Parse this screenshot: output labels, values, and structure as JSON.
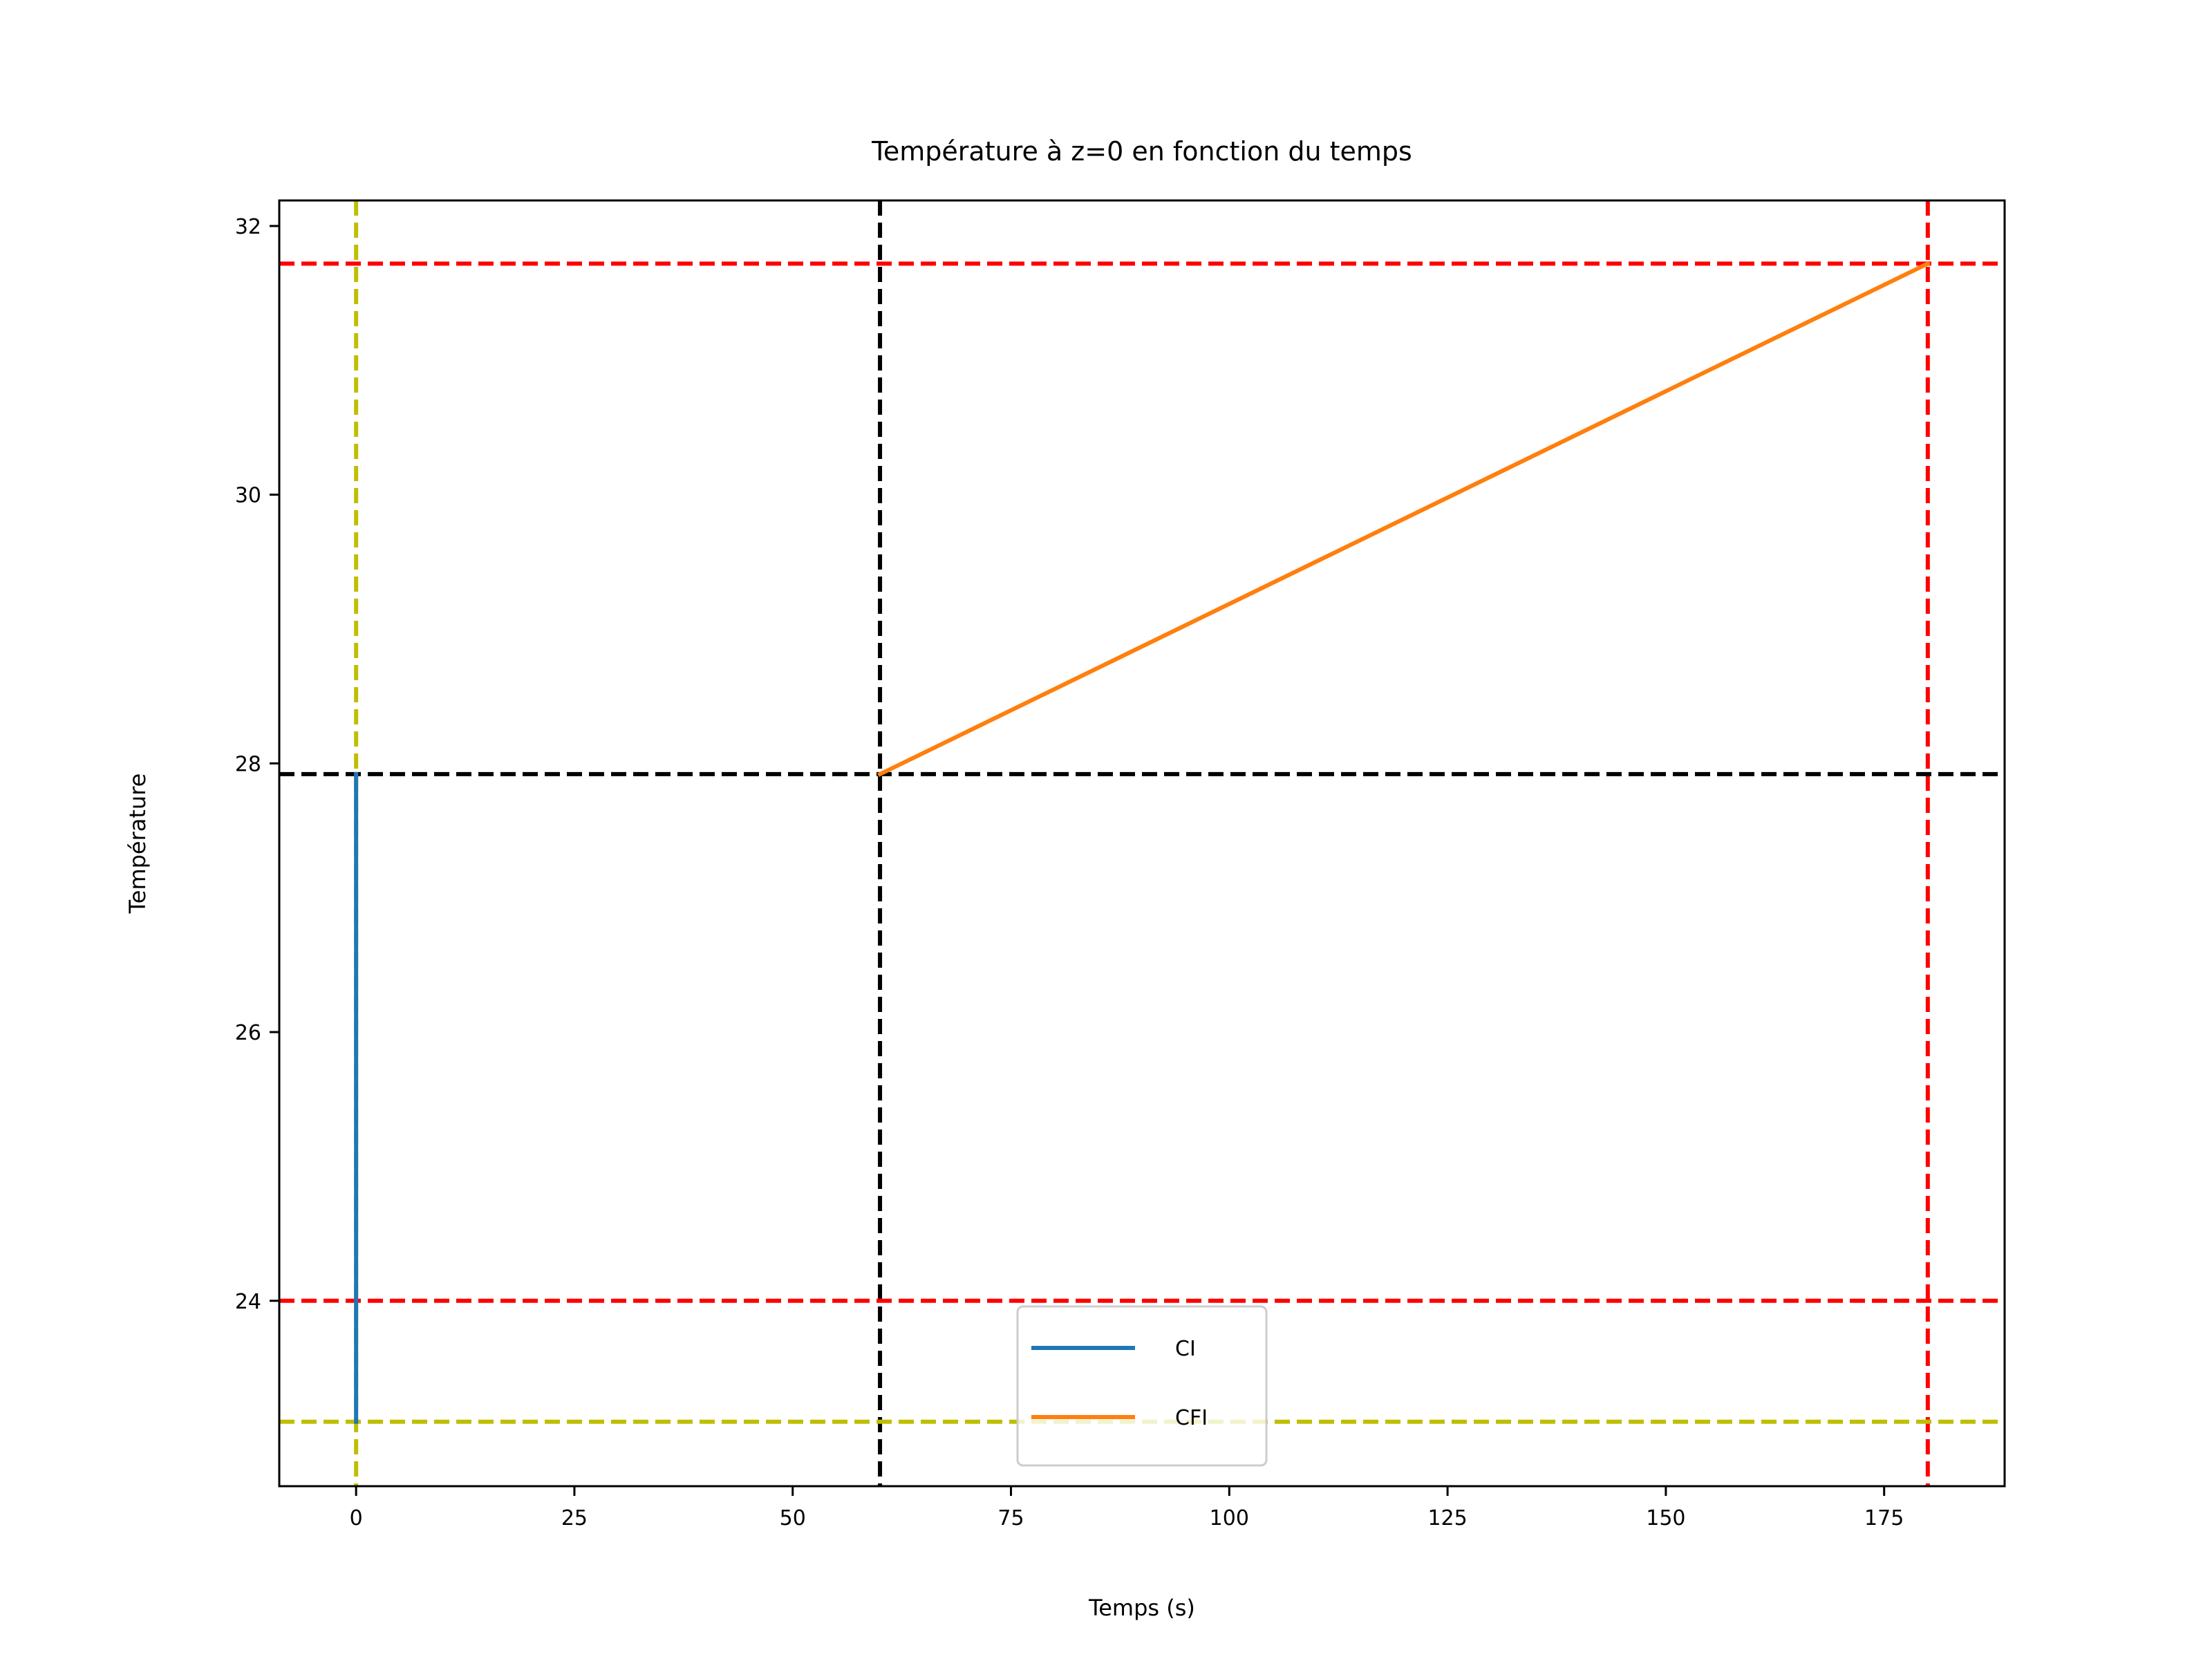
{
  "chart_data": {
    "type": "line",
    "title": "Température à z=0 en fonction du temps",
    "xlabel": "Temps (s)",
    "ylabel": "Température",
    "xlim": [
      -8.8,
      188.8
    ],
    "ylim": [
      22.62,
      32.19
    ],
    "xticks": [
      0,
      25,
      50,
      75,
      100,
      125,
      150,
      175
    ],
    "yticks": [
      24,
      26,
      28,
      30,
      32
    ],
    "grid": false,
    "legend_position": "lower center",
    "series": [
      {
        "name": "CI",
        "color": "#1f77b4",
        "x": [
          0,
          0
        ],
        "y": [
          23.1,
          27.92
        ]
      },
      {
        "name": "CFI",
        "color": "#ff7f0e",
        "x": [
          60,
          180
        ],
        "y": [
          27.92,
          31.72
        ]
      }
    ],
    "reference_lines": [
      {
        "orientation": "vertical",
        "value": 0,
        "color": "#bfbf00"
      },
      {
        "orientation": "vertical",
        "value": 60,
        "color": "#000000"
      },
      {
        "orientation": "vertical",
        "value": 180,
        "color": "#ff0000"
      },
      {
        "orientation": "horizontal",
        "value": 31.72,
        "color": "#ff0000"
      },
      {
        "orientation": "horizontal",
        "value": 27.92,
        "color": "#000000"
      },
      {
        "orientation": "horizontal",
        "value": 24.0,
        "color": "#ff0000"
      },
      {
        "orientation": "horizontal",
        "value": 23.1,
        "color": "#bfbf00"
      }
    ]
  }
}
